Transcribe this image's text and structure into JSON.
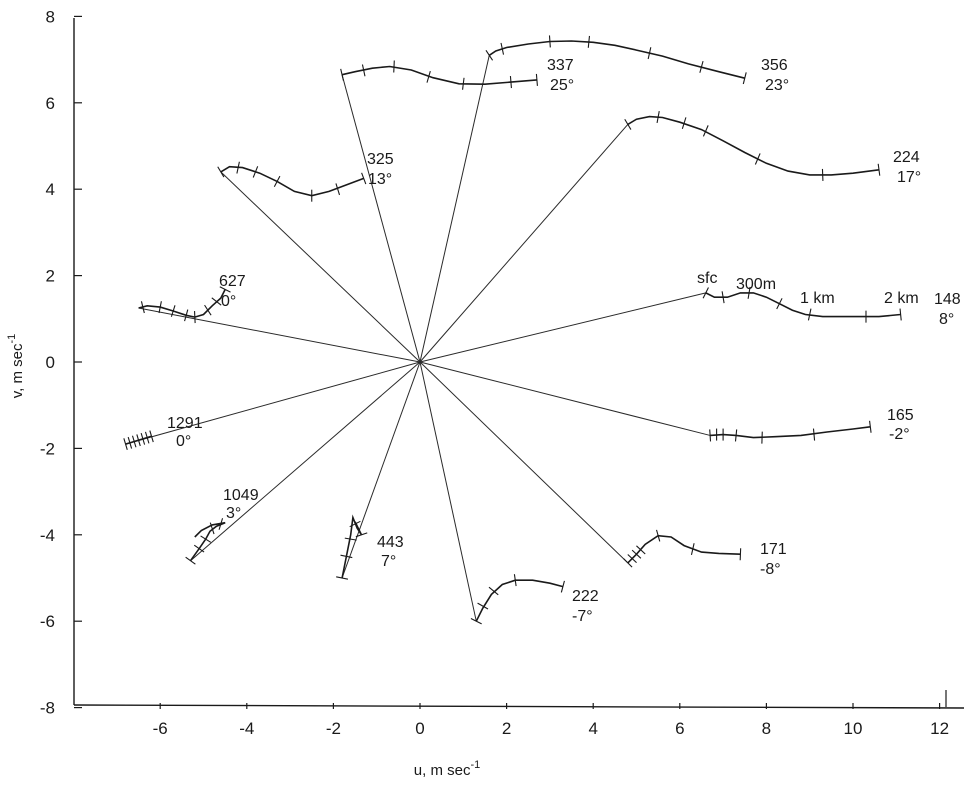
{
  "chart_data": {
    "type": "line",
    "xlabel": "u, m sec⁻¹",
    "ylabel": "v, m sec⁻¹",
    "xlim": [
      -8,
      12.5
    ],
    "ylim": [
      -8,
      8
    ],
    "x_ticks": [
      -6,
      -4,
      -2,
      0,
      2,
      4,
      6,
      8,
      10,
      12
    ],
    "y_ticks": [
      8,
      6,
      4,
      2,
      0,
      -2,
      -4,
      -6,
      -8
    ],
    "x_tick_labels": [
      "-6",
      "-4",
      "-2",
      "0",
      "2",
      "4",
      "6",
      "8",
      "10",
      "12"
    ],
    "y_tick_labels": [
      "8",
      "6",
      "4",
      "2",
      "0",
      "-2",
      "-4",
      "-6",
      "-8"
    ],
    "series": [
      {
        "name": "148",
        "angle": "8°",
        "points": [
          [
            6.6,
            1.6
          ],
          [
            6.8,
            1.5
          ],
          [
            7.1,
            1.5
          ],
          [
            7.4,
            1.6
          ],
          [
            7.7,
            1.6
          ],
          [
            8.0,
            1.5
          ],
          [
            8.3,
            1.35
          ],
          [
            8.6,
            1.2
          ],
          [
            8.9,
            1.1
          ],
          [
            9.3,
            1.05
          ],
          [
            9.7,
            1.05
          ],
          [
            10.1,
            1.05
          ],
          [
            10.6,
            1.05
          ],
          [
            11.1,
            1.1
          ]
        ],
        "ticks": [
          [
            6.6,
            1.6
          ],
          [
            7.0,
            1.5
          ],
          [
            7.6,
            1.6
          ],
          [
            8.3,
            1.35
          ],
          [
            9.0,
            1.1
          ],
          [
            10.3,
            1.05
          ],
          [
            11.1,
            1.1
          ]
        ]
      },
      {
        "name": "224",
        "angle": "17°",
        "points": [
          [
            4.8,
            5.5
          ],
          [
            5.0,
            5.62
          ],
          [
            5.3,
            5.68
          ],
          [
            5.6,
            5.66
          ],
          [
            6.0,
            5.55
          ],
          [
            6.5,
            5.38
          ],
          [
            7.0,
            5.12
          ],
          [
            7.5,
            4.85
          ],
          [
            8.0,
            4.6
          ],
          [
            8.5,
            4.42
          ],
          [
            9.0,
            4.33
          ],
          [
            9.5,
            4.33
          ],
          [
            10.0,
            4.37
          ],
          [
            10.6,
            4.45
          ]
        ],
        "ticks": [
          [
            4.8,
            5.5
          ],
          [
            5.5,
            5.67
          ],
          [
            6.1,
            5.53
          ],
          [
            6.6,
            5.35
          ],
          [
            7.8,
            4.7
          ],
          [
            9.3,
            4.33
          ],
          [
            10.6,
            4.45
          ]
        ]
      },
      {
        "name": "356",
        "angle": "23°",
        "points": [
          [
            1.6,
            7.1
          ],
          [
            1.75,
            7.2
          ],
          [
            2.0,
            7.28
          ],
          [
            2.5,
            7.36
          ],
          [
            3.0,
            7.42
          ],
          [
            3.5,
            7.43
          ],
          [
            4.0,
            7.4
          ],
          [
            4.5,
            7.33
          ],
          [
            5.0,
            7.22
          ],
          [
            5.6,
            7.08
          ],
          [
            6.2,
            6.9
          ],
          [
            6.9,
            6.72
          ],
          [
            7.5,
            6.57
          ]
        ],
        "ticks": [
          [
            1.6,
            7.1
          ],
          [
            1.9,
            7.25
          ],
          [
            3.0,
            7.42
          ],
          [
            3.9,
            7.41
          ],
          [
            5.3,
            7.15
          ],
          [
            6.5,
            6.83
          ],
          [
            7.5,
            6.57
          ]
        ]
      },
      {
        "name": "337",
        "angle": "25°",
        "points": [
          [
            -1.8,
            6.65
          ],
          [
            -1.5,
            6.72
          ],
          [
            -1.1,
            6.8
          ],
          [
            -0.7,
            6.84
          ],
          [
            -0.2,
            6.76
          ],
          [
            0.3,
            6.58
          ],
          [
            0.9,
            6.44
          ],
          [
            1.5,
            6.43
          ],
          [
            2.1,
            6.48
          ],
          [
            2.7,
            6.53
          ]
        ],
        "ticks": [
          [
            -1.8,
            6.65
          ],
          [
            -1.3,
            6.75
          ],
          [
            -0.6,
            6.84
          ],
          [
            0.2,
            6.6
          ],
          [
            1.0,
            6.44
          ],
          [
            2.1,
            6.48
          ],
          [
            2.7,
            6.53
          ]
        ]
      },
      {
        "name": "325",
        "angle": "13°",
        "points": [
          [
            -4.6,
            4.4
          ],
          [
            -4.4,
            4.52
          ],
          [
            -4.1,
            4.5
          ],
          [
            -3.7,
            4.37
          ],
          [
            -3.3,
            4.18
          ],
          [
            -2.9,
            3.95
          ],
          [
            -2.5,
            3.85
          ],
          [
            -2.1,
            3.95
          ],
          [
            -1.7,
            4.1
          ],
          [
            -1.3,
            4.25
          ]
        ],
        "ticks": [
          [
            -4.6,
            4.4
          ],
          [
            -4.2,
            4.5
          ],
          [
            -3.8,
            4.4
          ],
          [
            -3.3,
            4.18
          ],
          [
            -2.5,
            3.85
          ],
          [
            -1.9,
            4.0
          ],
          [
            -1.3,
            4.25
          ]
        ]
      },
      {
        "name": "627",
        "angle": "0°",
        "points": [
          [
            -6.5,
            1.25
          ],
          [
            -6.3,
            1.3
          ],
          [
            -6.0,
            1.27
          ],
          [
            -5.7,
            1.18
          ],
          [
            -5.4,
            1.08
          ],
          [
            -5.2,
            1.04
          ],
          [
            -5.0,
            1.1
          ],
          [
            -4.8,
            1.3
          ],
          [
            -4.6,
            1.48
          ],
          [
            -4.5,
            1.68
          ]
        ],
        "ticks": [
          [
            -6.4,
            1.27
          ],
          [
            -6.0,
            1.27
          ],
          [
            -5.7,
            1.18
          ],
          [
            -5.4,
            1.08
          ],
          [
            -5.2,
            1.04
          ],
          [
            -4.9,
            1.2
          ],
          [
            -4.7,
            1.4
          ],
          [
            -4.5,
            1.68
          ]
        ]
      },
      {
        "name": "1291",
        "angle": "0°",
        "points": [
          [
            -6.8,
            -1.9
          ],
          [
            -6.2,
            -1.72
          ]
        ],
        "ticks": [
          [
            -6.8,
            -1.9
          ],
          [
            -6.7,
            -1.87
          ],
          [
            -6.6,
            -1.84
          ],
          [
            -6.5,
            -1.81
          ],
          [
            -6.4,
            -1.78
          ],
          [
            -6.3,
            -1.75
          ],
          [
            -6.2,
            -1.72
          ]
        ]
      },
      {
        "name": "1049",
        "angle": "3°",
        "points": [
          [
            -5.3,
            -4.6
          ],
          [
            -5.1,
            -4.32
          ],
          [
            -4.95,
            -4.1
          ],
          [
            -4.85,
            -3.92
          ],
          [
            -4.7,
            -3.8
          ],
          [
            -4.5,
            -3.72
          ],
          [
            -4.8,
            -3.77
          ],
          [
            -5.05,
            -3.9
          ],
          [
            -5.2,
            -4.05
          ]
        ],
        "ticks": [
          [
            -5.3,
            -4.6
          ],
          [
            -5.1,
            -4.32
          ],
          [
            -4.95,
            -4.1
          ],
          [
            -4.8,
            -3.85
          ],
          [
            -4.6,
            -3.75
          ]
        ]
      },
      {
        "name": "443",
        "angle": "7°",
        "points": [
          [
            -1.8,
            -5.0
          ],
          [
            -1.7,
            -4.5
          ],
          [
            -1.6,
            -4.0
          ],
          [
            -1.55,
            -3.6
          ],
          [
            -1.45,
            -3.85
          ],
          [
            -1.35,
            -4.0
          ],
          [
            -1.5,
            -3.7
          ]
        ],
        "ticks": [
          [
            -1.8,
            -5.0
          ],
          [
            -1.7,
            -4.5
          ],
          [
            -1.6,
            -4.1
          ],
          [
            -1.5,
            -3.75
          ],
          [
            -1.35,
            -4.0
          ]
        ]
      },
      {
        "name": "222",
        "angle": "-7°",
        "points": [
          [
            1.3,
            -6.0
          ],
          [
            1.45,
            -5.7
          ],
          [
            1.65,
            -5.38
          ],
          [
            1.9,
            -5.15
          ],
          [
            2.2,
            -5.05
          ],
          [
            2.6,
            -5.05
          ],
          [
            3.0,
            -5.12
          ],
          [
            3.3,
            -5.2
          ]
        ],
        "ticks": [
          [
            1.3,
            -6.0
          ],
          [
            1.45,
            -5.65
          ],
          [
            1.7,
            -5.3
          ],
          [
            2.2,
            -5.05
          ],
          [
            3.3,
            -5.2
          ]
        ]
      },
      {
        "name": "171",
        "angle": "-8°",
        "points": [
          [
            4.8,
            -4.65
          ],
          [
            5.0,
            -4.45
          ],
          [
            5.2,
            -4.22
          ],
          [
            5.5,
            -4.02
          ],
          [
            5.8,
            -4.05
          ],
          [
            6.1,
            -4.25
          ],
          [
            6.5,
            -4.4
          ],
          [
            6.9,
            -4.43
          ],
          [
            7.4,
            -4.45
          ]
        ],
        "ticks": [
          [
            4.8,
            -4.65
          ],
          [
            4.9,
            -4.55
          ],
          [
            5.0,
            -4.45
          ],
          [
            5.1,
            -4.35
          ],
          [
            5.5,
            -4.02
          ],
          [
            6.3,
            -4.33
          ],
          [
            7.4,
            -4.45
          ]
        ]
      },
      {
        "name": "165",
        "angle": "-2°",
        "points": [
          [
            6.7,
            -1.7
          ],
          [
            7.0,
            -1.68
          ],
          [
            7.3,
            -1.7
          ],
          [
            7.7,
            -1.75
          ],
          [
            8.2,
            -1.73
          ],
          [
            8.8,
            -1.7
          ],
          [
            9.4,
            -1.62
          ],
          [
            10.0,
            -1.55
          ],
          [
            10.4,
            -1.5
          ]
        ],
        "ticks": [
          [
            6.7,
            -1.7
          ],
          [
            6.85,
            -1.68
          ],
          [
            7.0,
            -1.68
          ],
          [
            7.3,
            -1.7
          ],
          [
            7.9,
            -1.75
          ],
          [
            9.1,
            -1.68
          ],
          [
            10.4,
            -1.5
          ]
        ]
      }
    ],
    "annotations": [
      "sfc",
      "300m",
      "1 km",
      "2 km"
    ]
  },
  "labels": {
    "s148": {
      "name": "148",
      "angle": "8°"
    },
    "s224": {
      "name": "224",
      "angle": "17°"
    },
    "s356": {
      "name": "356",
      "angle": "23°"
    },
    "s337": {
      "name": "337",
      "angle": "25°"
    },
    "s325": {
      "name": "325",
      "angle": "13°"
    },
    "s627": {
      "name": "627",
      "angle": "0°"
    },
    "s1291": {
      "name": "1291",
      "angle": "0°"
    },
    "s1049": {
      "name": "1049",
      "angle": "3°"
    },
    "s443": {
      "name": "443",
      "angle": "7°"
    },
    "s222": {
      "name": "222",
      "angle": "-7°"
    },
    "s171": {
      "name": "171",
      "angle": "-8°"
    },
    "s165": {
      "name": "165",
      "angle": "-2°"
    },
    "sfc": "sfc",
    "m300": "300m",
    "km1": "1 km",
    "km2": "2 km",
    "xlabel": "u, m sec",
    "ylabel": "v, m sec",
    "exp": "-1"
  }
}
